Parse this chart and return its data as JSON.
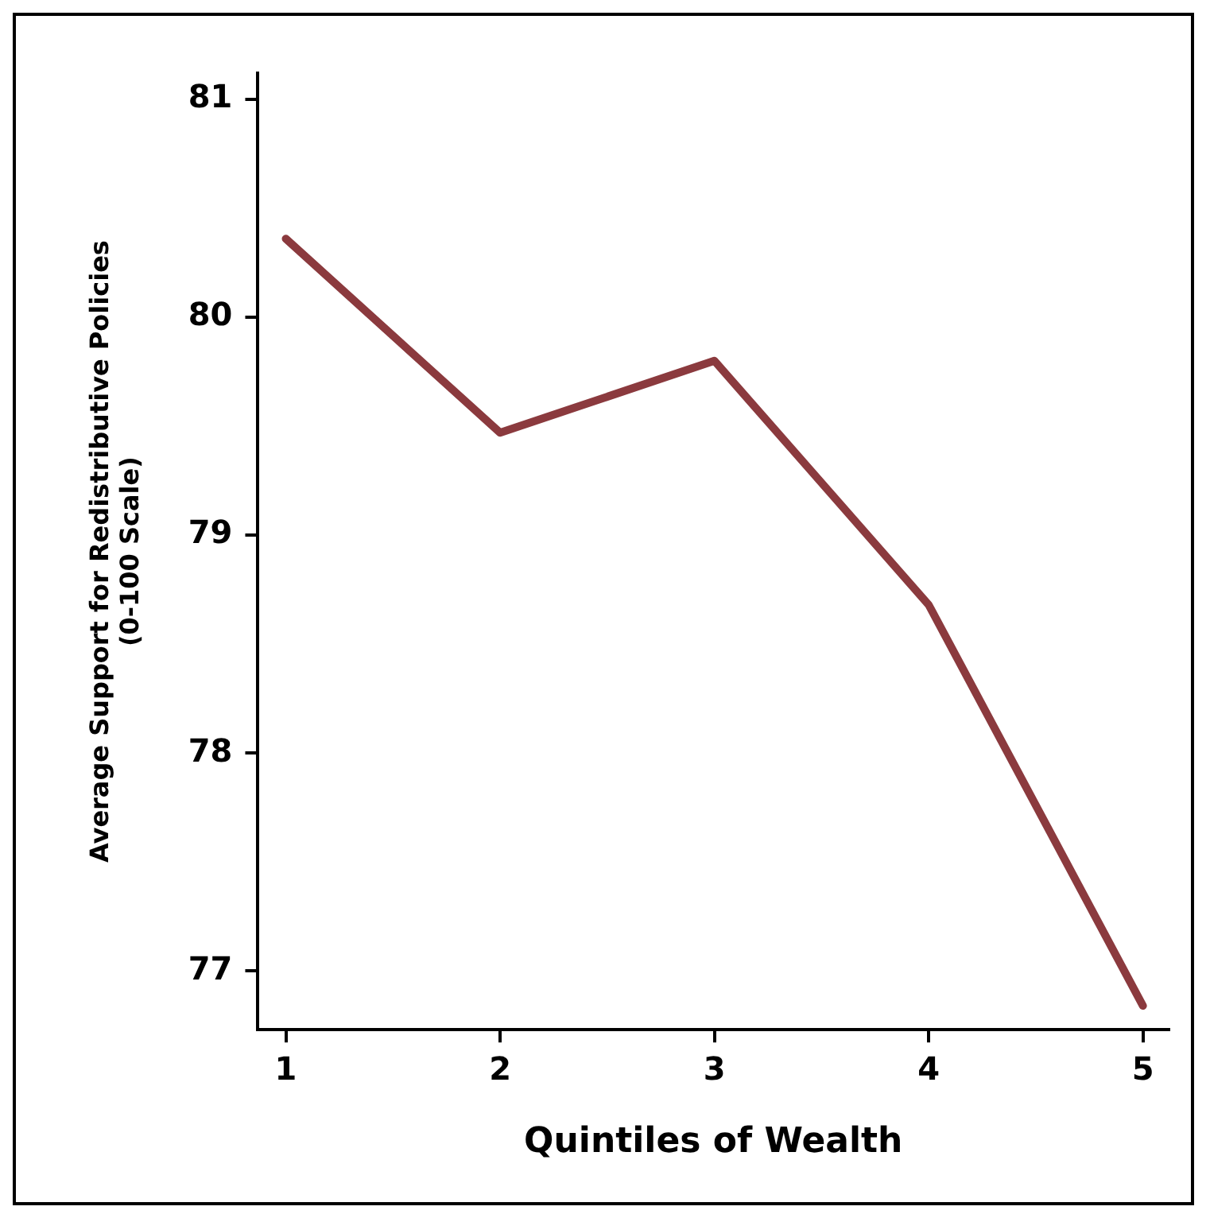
{
  "chart_data": {
    "type": "line",
    "xlabel": "Quintiles of Wealth",
    "ylabel": "Average Support for Redistributive Policies\n(0-100 Scale)",
    "x": [
      1,
      2,
      3,
      4,
      5
    ],
    "series": [
      {
        "color": "#8b3a3e",
        "values": [
          80.36,
          79.47,
          79.8,
          78.68,
          76.84
        ]
      }
    ],
    "xlim": [
      0.87,
      5.12
    ],
    "xticks": [
      1,
      2,
      3,
      4,
      5
    ],
    "ylim": [
      76.73,
      81.12
    ],
    "yticks": [
      77,
      78,
      79,
      80,
      81
    ],
    "grid": false,
    "legend": false,
    "marker": "none",
    "line_style": "solid"
  }
}
